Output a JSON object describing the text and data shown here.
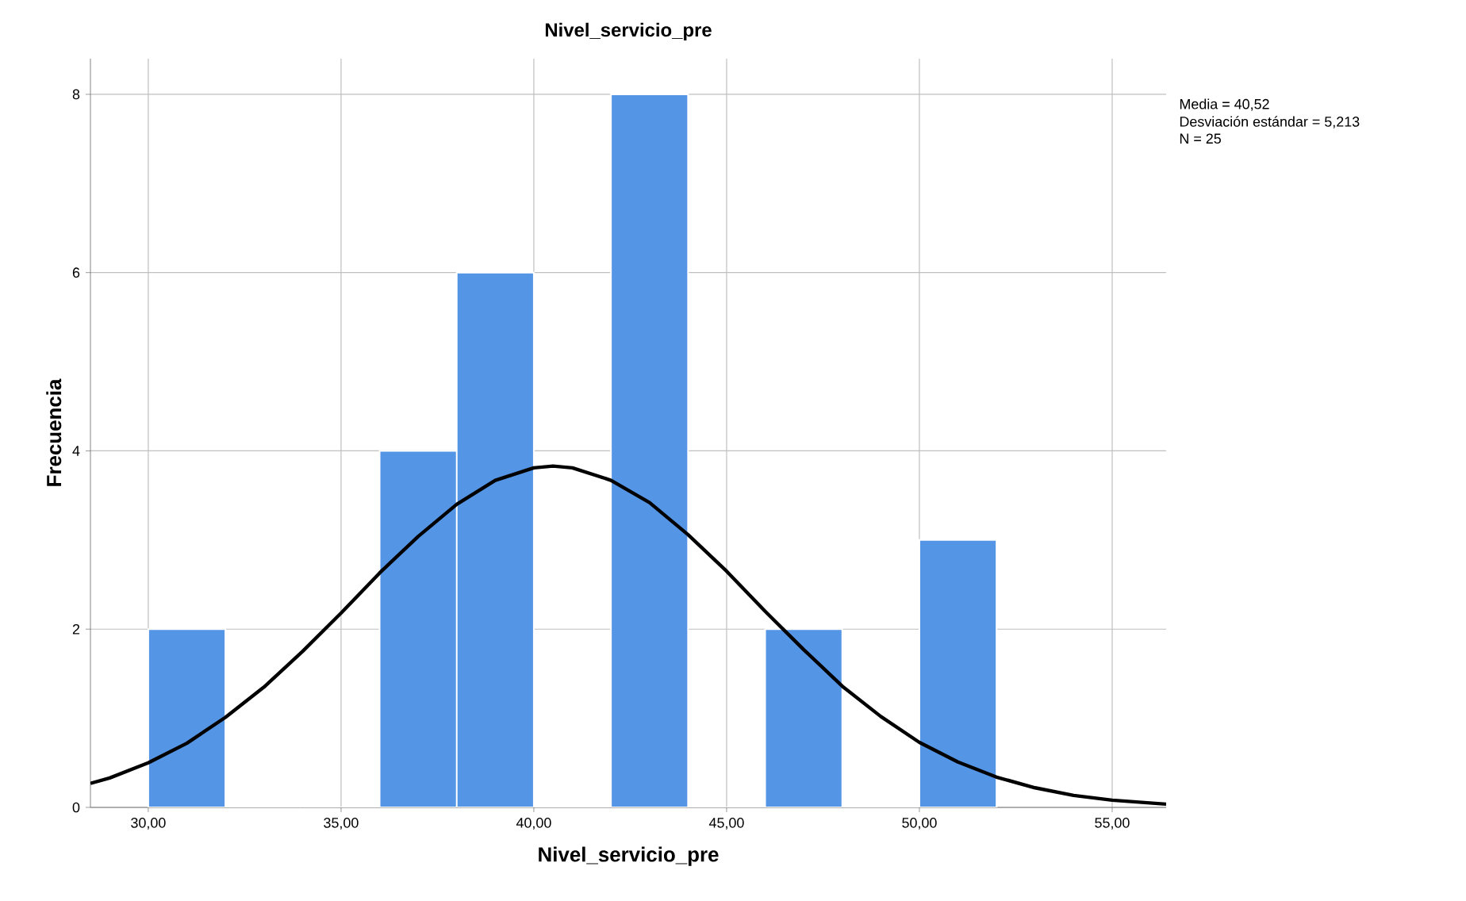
{
  "chart_data": {
    "type": "histogram",
    "title": "Nivel_servicio_pre",
    "xlabel": "Nivel_servicio_pre",
    "ylabel": "Frecuencia",
    "bins": [
      30,
      32,
      34,
      36,
      38,
      40,
      42,
      44,
      46,
      48,
      50,
      52
    ],
    "values": [
      2,
      0,
      0,
      4,
      6,
      0,
      8,
      0,
      2,
      0,
      3
    ],
    "color": "#5595e5",
    "series": [
      {
        "type": "line",
        "color": "#000000",
        "x": [
          28.5,
          29,
          30,
          31,
          32,
          33,
          34,
          35,
          36,
          37,
          38,
          39,
          40,
          40.5,
          41,
          42,
          43,
          44,
          45,
          46,
          47,
          48,
          49,
          50,
          51,
          52,
          53,
          54,
          55,
          56.4
        ],
        "values": [
          0.27,
          0.33,
          0.5,
          0.72,
          1.01,
          1.35,
          1.75,
          2.18,
          2.63,
          3.04,
          3.4,
          3.67,
          3.81,
          3.83,
          3.81,
          3.67,
          3.42,
          3.06,
          2.65,
          2.2,
          1.77,
          1.36,
          1.02,
          0.73,
          0.51,
          0.34,
          0.22,
          0.135,
          0.081,
          0.037
        ]
      }
    ],
    "xlim": [
      28.5,
      56.4
    ],
    "ylim": [
      0,
      8.4
    ],
    "xticks": [
      {
        "value": 30,
        "label": "30,00"
      },
      {
        "value": 35,
        "label": "35,00"
      },
      {
        "value": 40,
        "label": "40,00"
      },
      {
        "value": 45,
        "label": "45,00"
      },
      {
        "value": 50,
        "label": "50,00"
      },
      {
        "value": 55,
        "label": "55,00"
      }
    ],
    "yticks": [
      0,
      2,
      4,
      6,
      8
    ],
    "grid": true,
    "annotations": [
      "Media = 40,52",
      "Desviación estándar = 5,213",
      "N = 25"
    ]
  }
}
